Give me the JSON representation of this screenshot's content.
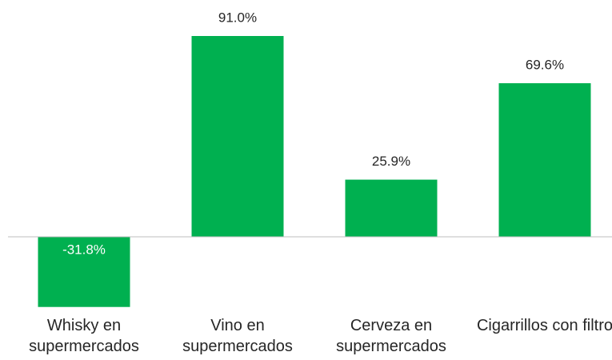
{
  "chart_data": {
    "type": "bar",
    "categories": [
      "Whisky en supermercados",
      "Vino en supermercados",
      "Cerveza en supermercados",
      "Cigarrillos con filtro"
    ],
    "values": [
      -31.8,
      91.0,
      25.9,
      69.6
    ],
    "value_labels": [
      "-31.8%",
      "91.0%",
      "25.9%",
      "69.6%"
    ],
    "color": "#00b050"
  }
}
